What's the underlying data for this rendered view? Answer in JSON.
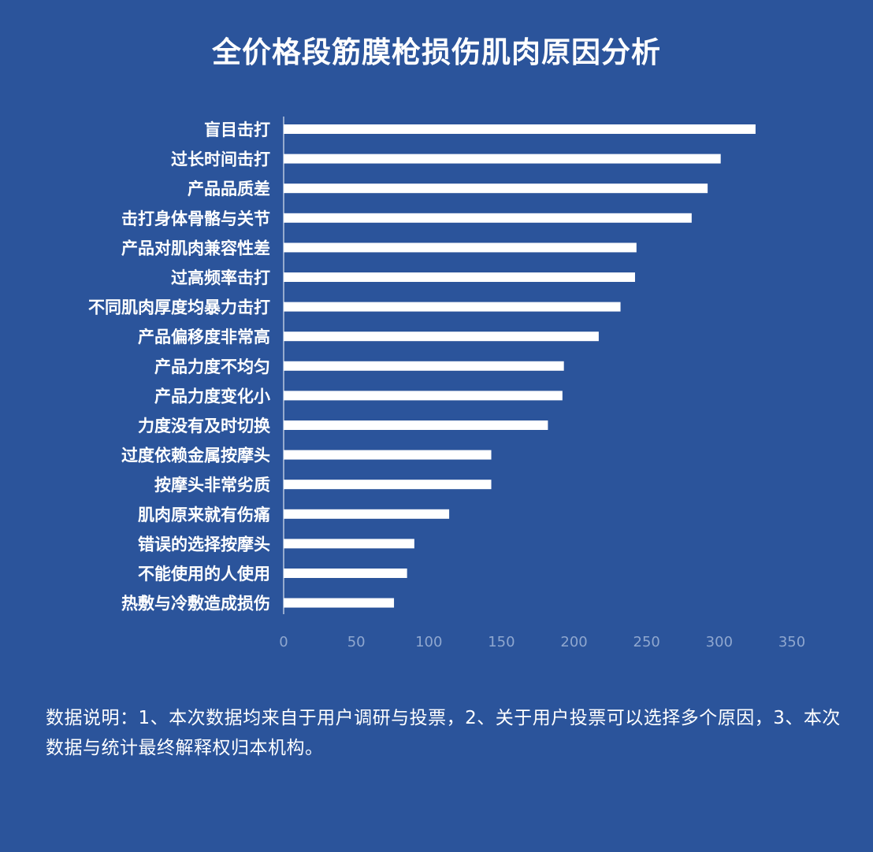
{
  "chart_data": {
    "type": "bar",
    "orientation": "horizontal",
    "title": "全价格段筋膜枪损伤肌肉原因分析",
    "categories": [
      "盲目击打",
      "过长时间击打",
      "产品品质差",
      "击打身体骨骼与关节",
      "产品对肌肉兼容性差",
      "过高频率击打",
      "不同肌肉厚度均暴力击打",
      "产品偏移度非常高",
      "产品力度不均匀",
      "产品力度变化小",
      "力度没有及时切换",
      "过度依赖金属按摩头",
      "按摩头非常劣质",
      "肌肉原来就有伤痛",
      "错误的选择按摩头",
      "不能使用的人使用",
      "热敷与冷敷造成损伤"
    ],
    "values": [
      325,
      301,
      292,
      281,
      243,
      242,
      232,
      217,
      193,
      192,
      182,
      143,
      143,
      114,
      90,
      85,
      76
    ],
    "xlim": [
      0,
      350
    ],
    "xticks": [
      "0",
      "50",
      "100",
      "150",
      "200",
      "250",
      "300",
      "350"
    ],
    "grid": false,
    "bar_color": "#ffffff",
    "background_color": "#2b549b",
    "tick_label_color": "#8fa7cf"
  },
  "note": "数据说明：1、本次数据均来自于用户调研与投票，2、关于用户投票可以选择多个原因，3、本次数据与统计最终解释权归本机构。"
}
